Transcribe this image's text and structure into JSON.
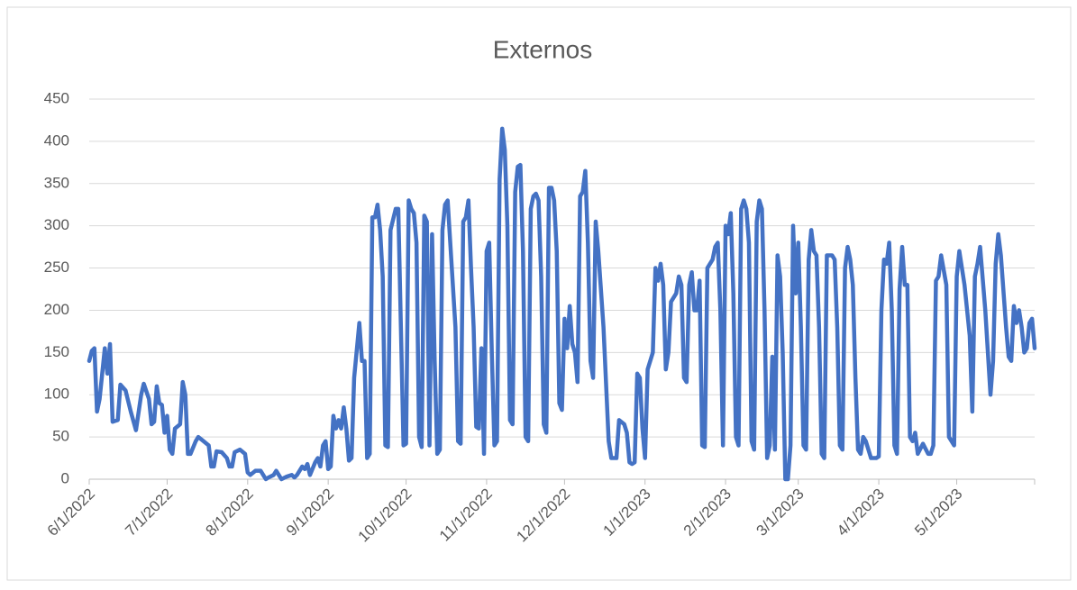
{
  "chart_data": {
    "type": "line",
    "title": "Externos",
    "x": [
      "2022-06-01",
      "2022-06-02",
      "2022-06-03",
      "2022-06-04",
      "2022-06-05",
      "2022-06-07",
      "2022-06-08",
      "2022-06-09",
      "2022-06-10",
      "2022-06-12",
      "2022-06-13",
      "2022-06-15",
      "2022-06-17",
      "2022-06-19",
      "2022-06-21",
      "2022-06-22",
      "2022-06-24",
      "2022-06-25",
      "2022-06-26",
      "2022-06-27",
      "2022-06-28",
      "2022-06-29",
      "2022-06-30",
      "2022-07-01",
      "2022-07-02",
      "2022-07-03",
      "2022-07-04",
      "2022-07-06",
      "2022-07-07",
      "2022-07-08",
      "2022-07-09",
      "2022-07-10",
      "2022-07-12",
      "2022-07-13",
      "2022-07-15",
      "2022-07-17",
      "2022-07-18",
      "2022-07-19",
      "2022-07-20",
      "2022-07-22",
      "2022-07-24",
      "2022-07-25",
      "2022-07-26",
      "2022-07-27",
      "2022-07-29",
      "2022-07-31",
      "2022-08-01",
      "2022-08-02",
      "2022-08-04",
      "2022-08-06",
      "2022-08-07",
      "2022-08-08",
      "2022-08-09",
      "2022-08-11",
      "2022-08-12",
      "2022-08-13",
      "2022-08-14",
      "2022-08-16",
      "2022-08-18",
      "2022-08-19",
      "2022-08-20",
      "2022-08-22",
      "2022-08-23",
      "2022-08-24",
      "2022-08-25",
      "2022-08-27",
      "2022-08-28",
      "2022-08-29",
      "2022-08-30",
      "2022-08-31",
      "2022-09-01",
      "2022-09-02",
      "2022-09-03",
      "2022-09-04",
      "2022-09-05",
      "2022-09-06",
      "2022-09-07",
      "2022-09-08",
      "2022-09-09",
      "2022-09-10",
      "2022-09-11",
      "2022-09-13",
      "2022-09-14",
      "2022-09-15",
      "2022-09-16",
      "2022-09-17",
      "2022-09-18",
      "2022-09-19",
      "2022-09-20",
      "2022-09-21",
      "2022-09-22",
      "2022-09-23",
      "2022-09-24",
      "2022-09-25",
      "2022-09-27",
      "2022-09-28",
      "2022-09-29",
      "2022-09-30",
      "2022-10-01",
      "2022-10-02",
      "2022-10-03",
      "2022-10-04",
      "2022-10-05",
      "2022-10-06",
      "2022-10-07",
      "2022-10-08",
      "2022-10-09",
      "2022-10-10",
      "2022-10-11",
      "2022-10-12",
      "2022-10-13",
      "2022-10-14",
      "2022-10-15",
      "2022-10-16",
      "2022-10-17",
      "2022-10-18",
      "2022-10-20",
      "2022-10-21",
      "2022-10-22",
      "2022-10-23",
      "2022-10-24",
      "2022-10-25",
      "2022-10-26",
      "2022-10-27",
      "2022-10-28",
      "2022-10-29",
      "2022-10-30",
      "2022-10-31",
      "2022-11-01",
      "2022-11-02",
      "2022-11-03",
      "2022-11-04",
      "2022-11-05",
      "2022-11-06",
      "2022-11-07",
      "2022-11-08",
      "2022-11-09",
      "2022-11-10",
      "2022-11-11",
      "2022-11-12",
      "2022-11-13",
      "2022-11-14",
      "2022-11-15",
      "2022-11-16",
      "2022-11-17",
      "2022-11-18",
      "2022-11-19",
      "2022-11-20",
      "2022-11-21",
      "2022-11-22",
      "2022-11-23",
      "2022-11-24",
      "2022-11-25",
      "2022-11-26",
      "2022-11-27",
      "2022-11-28",
      "2022-11-29",
      "2022-11-30",
      "2022-12-01",
      "2022-12-02",
      "2022-12-03",
      "2022-12-04",
      "2022-12-05",
      "2022-12-06",
      "2022-12-07",
      "2022-12-08",
      "2022-12-09",
      "2022-12-10",
      "2022-12-11",
      "2022-12-12",
      "2022-12-13",
      "2022-12-14",
      "2022-12-16",
      "2022-12-18",
      "2022-12-19",
      "2022-12-21",
      "2022-12-22",
      "2022-12-24",
      "2022-12-25",
      "2022-12-26",
      "2022-12-27",
      "2022-12-28",
      "2022-12-29",
      "2022-12-30",
      "2022-12-31",
      "2023-01-01",
      "2023-01-02",
      "2023-01-04",
      "2023-01-05",
      "2023-01-06",
      "2023-01-07",
      "2023-01-08",
      "2023-01-09",
      "2023-01-10",
      "2023-01-11",
      "2023-01-13",
      "2023-01-14",
      "2023-01-15",
      "2023-01-16",
      "2023-01-17",
      "2023-01-18",
      "2023-01-19",
      "2023-01-20",
      "2023-01-21",
      "2023-01-22",
      "2023-01-23",
      "2023-01-24",
      "2023-01-25",
      "2023-01-27",
      "2023-01-28",
      "2023-01-29",
      "2023-01-30",
      "2023-01-31",
      "2023-02-01",
      "2023-02-02",
      "2023-02-03",
      "2023-02-04",
      "2023-02-05",
      "2023-02-06",
      "2023-02-07",
      "2023-02-08",
      "2023-02-09",
      "2023-02-10",
      "2023-02-11",
      "2023-02-12",
      "2023-02-13",
      "2023-02-14",
      "2023-02-15",
      "2023-02-16",
      "2023-02-17",
      "2023-02-18",
      "2023-02-19",
      "2023-02-20",
      "2023-02-21",
      "2023-02-22",
      "2023-02-23",
      "2023-02-24",
      "2023-02-25",
      "2023-02-26",
      "2023-02-27",
      "2023-02-28",
      "2023-03-01",
      "2023-03-02",
      "2023-03-03",
      "2023-03-04",
      "2023-03-05",
      "2023-03-06",
      "2023-03-07",
      "2023-03-08",
      "2023-03-09",
      "2023-03-10",
      "2023-03-11",
      "2023-03-12",
      "2023-03-14",
      "2023-03-15",
      "2023-03-16",
      "2023-03-17",
      "2023-03-18",
      "2023-03-19",
      "2023-03-20",
      "2023-03-21",
      "2023-03-22",
      "2023-03-23",
      "2023-03-24",
      "2023-03-25",
      "2023-03-26",
      "2023-03-27",
      "2023-03-28",
      "2023-03-29",
      "2023-03-31",
      "2023-04-01",
      "2023-04-02",
      "2023-04-03",
      "2023-04-04",
      "2023-04-05",
      "2023-04-06",
      "2023-04-07",
      "2023-04-08",
      "2023-04-09",
      "2023-04-10",
      "2023-04-11",
      "2023-04-12",
      "2023-04-13",
      "2023-04-14",
      "2023-04-15",
      "2023-04-16",
      "2023-04-18",
      "2023-04-20",
      "2023-04-21",
      "2023-04-22",
      "2023-04-23",
      "2023-04-24",
      "2023-04-25",
      "2023-04-27",
      "2023-04-28",
      "2023-04-30",
      "2023-05-01",
      "2023-05-02",
      "2023-05-04",
      "2023-05-06",
      "2023-05-07",
      "2023-05-08",
      "2023-05-09",
      "2023-05-10",
      "2023-05-12",
      "2023-05-14",
      "2023-05-15",
      "2023-05-16",
      "2023-05-17",
      "2023-05-18",
      "2023-05-20",
      "2023-05-21",
      "2023-05-22",
      "2023-05-23",
      "2023-05-24",
      "2023-05-25",
      "2023-05-26",
      "2023-05-27",
      "2023-05-28",
      "2023-05-29",
      "2023-05-30",
      "2023-05-31"
    ],
    "series": [
      {
        "color": "#4472c4",
        "values": [
          140,
          152,
          155,
          80,
          95,
          155,
          125,
          160,
          68,
          70,
          112,
          105,
          80,
          58,
          100,
          113,
          95,
          65,
          68,
          110,
          90,
          88,
          55,
          75,
          35,
          30,
          60,
          65,
          115,
          100,
          30,
          30,
          45,
          50,
          45,
          40,
          15,
          15,
          33,
          32,
          25,
          15,
          15,
          32,
          35,
          30,
          8,
          5,
          10,
          10,
          5,
          0,
          2,
          5,
          10,
          5,
          0,
          3,
          5,
          2,
          5,
          15,
          12,
          18,
          5,
          20,
          25,
          15,
          40,
          45,
          12,
          15,
          75,
          60,
          70,
          60,
          85,
          60,
          22,
          25,
          120,
          185,
          140,
          140,
          25,
          30,
          310,
          310,
          325,
          295,
          240,
          40,
          38,
          295,
          320,
          320,
          180,
          40,
          42,
          330,
          320,
          315,
          280,
          50,
          38,
          312,
          305,
          40,
          290,
          140,
          30,
          35,
          295,
          325,
          330,
          280,
          180,
          45,
          42,
          305,
          310,
          330,
          250,
          180,
          62,
          60,
          155,
          30,
          270,
          280,
          150,
          40,
          45,
          355,
          415,
          390,
          300,
          70,
          65,
          340,
          370,
          372,
          270,
          50,
          45,
          320,
          335,
          338,
          330,
          240,
          65,
          55,
          345,
          345,
          330,
          270,
          90,
          82,
          190,
          155,
          205,
          160,
          150,
          115,
          335,
          340,
          365,
          280,
          140,
          120,
          305,
          270,
          180,
          45,
          25,
          25,
          70,
          65,
          55,
          20,
          18,
          20,
          125,
          120,
          60,
          25,
          130,
          150,
          250,
          235,
          255,
          230,
          130,
          150,
          210,
          220,
          240,
          230,
          120,
          115,
          230,
          245,
          200,
          200,
          235,
          40,
          38,
          250,
          260,
          275,
          280,
          200,
          40,
          300,
          290,
          315,
          220,
          50,
          40,
          320,
          330,
          320,
          280,
          45,
          35,
          305,
          330,
          320,
          200,
          25,
          40,
          145,
          35,
          265,
          240,
          150,
          0,
          0,
          40,
          300,
          220,
          280,
          180,
          40,
          35,
          260,
          295,
          270,
          265,
          180,
          30,
          25,
          265,
          265,
          260,
          180,
          40,
          35,
          250,
          275,
          260,
          230,
          120,
          35,
          30,
          50,
          45,
          35,
          25,
          25,
          27,
          200,
          260,
          255,
          280,
          200,
          40,
          30,
          225,
          275,
          230,
          230,
          50,
          45,
          55,
          30,
          42,
          30,
          30,
          40,
          235,
          240,
          265,
          230,
          50,
          40,
          240,
          270,
          230,
          170,
          80,
          240,
          255,
          275,
          200,
          100,
          140,
          255,
          290,
          265,
          180,
          145,
          140,
          205,
          185,
          200,
          180,
          150,
          155,
          185,
          190,
          155
        ]
      }
    ],
    "xlim": [
      "2022-06-01",
      "2023-05-31"
    ],
    "xticks": [
      {
        "value": "2022-06-01",
        "label": "6/1/2022"
      },
      {
        "value": "2022-07-01",
        "label": "7/1/2022"
      },
      {
        "value": "2022-08-01",
        "label": "8/1/2022"
      },
      {
        "value": "2022-09-01",
        "label": "9/1/2022"
      },
      {
        "value": "2022-10-01",
        "label": "10/1/2022"
      },
      {
        "value": "2022-11-01",
        "label": "11/1/2022"
      },
      {
        "value": "2022-12-01",
        "label": "12/1/2022"
      },
      {
        "value": "2023-01-01",
        "label": "1/1/2023"
      },
      {
        "value": "2023-02-01",
        "label": "2/1/2023"
      },
      {
        "value": "2023-03-01",
        "label": "3/1/2023"
      },
      {
        "value": "2023-04-01",
        "label": "4/1/2023"
      },
      {
        "value": "2023-05-01",
        "label": "5/1/2023"
      }
    ],
    "ylim": [
      0,
      450
    ],
    "yticks": [
      0,
      50,
      100,
      150,
      200,
      250,
      300,
      350,
      400,
      450
    ],
    "grid": true
  }
}
